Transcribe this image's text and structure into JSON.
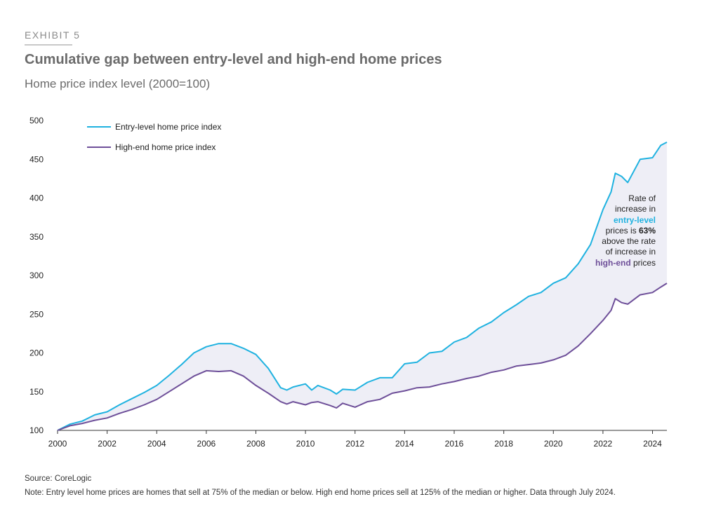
{
  "header": {
    "exhibit": "EXHIBIT 5",
    "title": "Cumulative gap between entry-level and high-end home prices",
    "subtitle": "Home price index level (2000=100)"
  },
  "annotation": {
    "line1": "Rate of",
    "line2": "increase in",
    "entry_word": "entry-level",
    "line4_prefix": "prices is ",
    "pct": "63%",
    "line5": "above the rate",
    "line6": "of increase in",
    "high_word": "high-end",
    "line7_suffix": " prices"
  },
  "footer": {
    "source": "Source: CoreLogic",
    "note": "Note: Entry level home prices are homes that sell at 75% of the median or below. High end home prices sell at 125% of the median or higher. Data through July 2024."
  },
  "colors": {
    "entry": "#1fb2e0",
    "high": "#6e4f99",
    "gap_fill": "#eeeef6"
  },
  "chart_data": {
    "type": "line",
    "title": "Cumulative gap between entry-level and high-end home prices",
    "ylabel": "Home price index level (2000=100)",
    "xlabel": "",
    "xlim": [
      2000,
      2024.58
    ],
    "ylim": [
      100,
      500
    ],
    "yticks": [
      100,
      150,
      200,
      250,
      300,
      350,
      400,
      450,
      500
    ],
    "xticks": [
      2000,
      2002,
      2004,
      2006,
      2008,
      2010,
      2012,
      2014,
      2016,
      2018,
      2020,
      2022,
      2024
    ],
    "grid": false,
    "legend_position": "top-left",
    "x": [
      2000.0,
      2000.5,
      2001.0,
      2001.5,
      2002.0,
      2002.5,
      2003.0,
      2003.5,
      2004.0,
      2004.5,
      2005.0,
      2005.5,
      2006.0,
      2006.5,
      2007.0,
      2007.5,
      2008.0,
      2008.5,
      2009.0,
      2009.25,
      2009.5,
      2010.0,
      2010.25,
      2010.5,
      2011.0,
      2011.25,
      2011.5,
      2012.0,
      2012.5,
      2013.0,
      2013.5,
      2014.0,
      2014.5,
      2015.0,
      2015.5,
      2016.0,
      2016.5,
      2017.0,
      2017.5,
      2018.0,
      2018.5,
      2019.0,
      2019.5,
      2020.0,
      2020.5,
      2021.0,
      2021.5,
      2022.0,
      2022.33,
      2022.5,
      2022.75,
      2023.0,
      2023.5,
      2024.0,
      2024.33,
      2024.58
    ],
    "series": [
      {
        "name": "Entry-level home price index",
        "values": [
          100,
          108,
          112,
          120,
          124,
          133,
          141,
          149,
          158,
          171,
          185,
          200,
          208,
          212,
          212,
          206,
          198,
          180,
          155,
          152,
          156,
          160,
          152,
          158,
          152,
          147,
          153,
          152,
          162,
          168,
          168,
          186,
          188,
          200,
          202,
          214,
          220,
          232,
          240,
          252,
          262,
          273,
          278,
          290,
          297,
          315,
          340,
          385,
          408,
          432,
          428,
          420,
          450,
          452,
          468,
          472
        ]
      },
      {
        "name": "High-end home price index",
        "values": [
          100,
          106,
          109,
          113,
          116,
          122,
          127,
          133,
          140,
          150,
          160,
          170,
          177,
          176,
          177,
          170,
          158,
          148,
          137,
          134,
          137,
          133,
          136,
          137,
          132,
          129,
          135,
          130,
          137,
          140,
          148,
          151,
          155,
          156,
          160,
          163,
          167,
          170,
          175,
          178,
          183,
          185,
          187,
          191,
          197,
          209,
          225,
          242,
          255,
          270,
          265,
          263,
          275,
          278,
          285,
          290
        ]
      }
    ]
  }
}
